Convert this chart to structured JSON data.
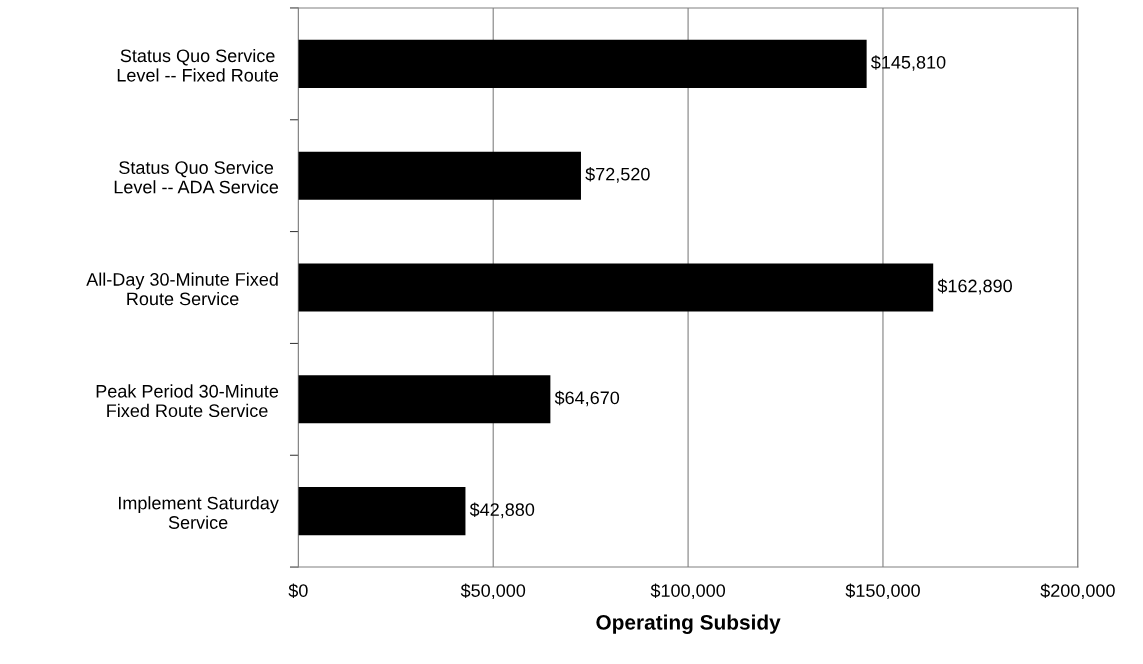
{
  "chart_data": {
    "type": "bar",
    "orientation": "horizontal",
    "xlabel": "Operating Subsidy",
    "categories": [
      "Status Quo Service\nLevel -- Fixed Route",
      "Status Quo Service\nLevel -- ADA Service",
      "All-Day 30-Minute Fixed\nRoute Service",
      "Peak Period 30-Minute\nFixed Route Service",
      "Implement Saturday\nService"
    ],
    "values": [
      145810,
      72520,
      162890,
      64670,
      42880
    ],
    "value_labels": [
      "$145,810",
      "$72,520",
      "$162,890",
      "$64,670",
      "$42,880"
    ],
    "color": "#000000",
    "xlim": [
      0,
      200000
    ],
    "xticks": [
      {
        "value": 0,
        "label": "$0"
      },
      {
        "value": 50000,
        "label": "$50,000"
      },
      {
        "value": 100000,
        "label": "$100,000"
      },
      {
        "value": 150000,
        "label": "$150,000"
      },
      {
        "value": 200000,
        "label": "$200,000"
      }
    ],
    "grid": "x",
    "legend": false
  }
}
